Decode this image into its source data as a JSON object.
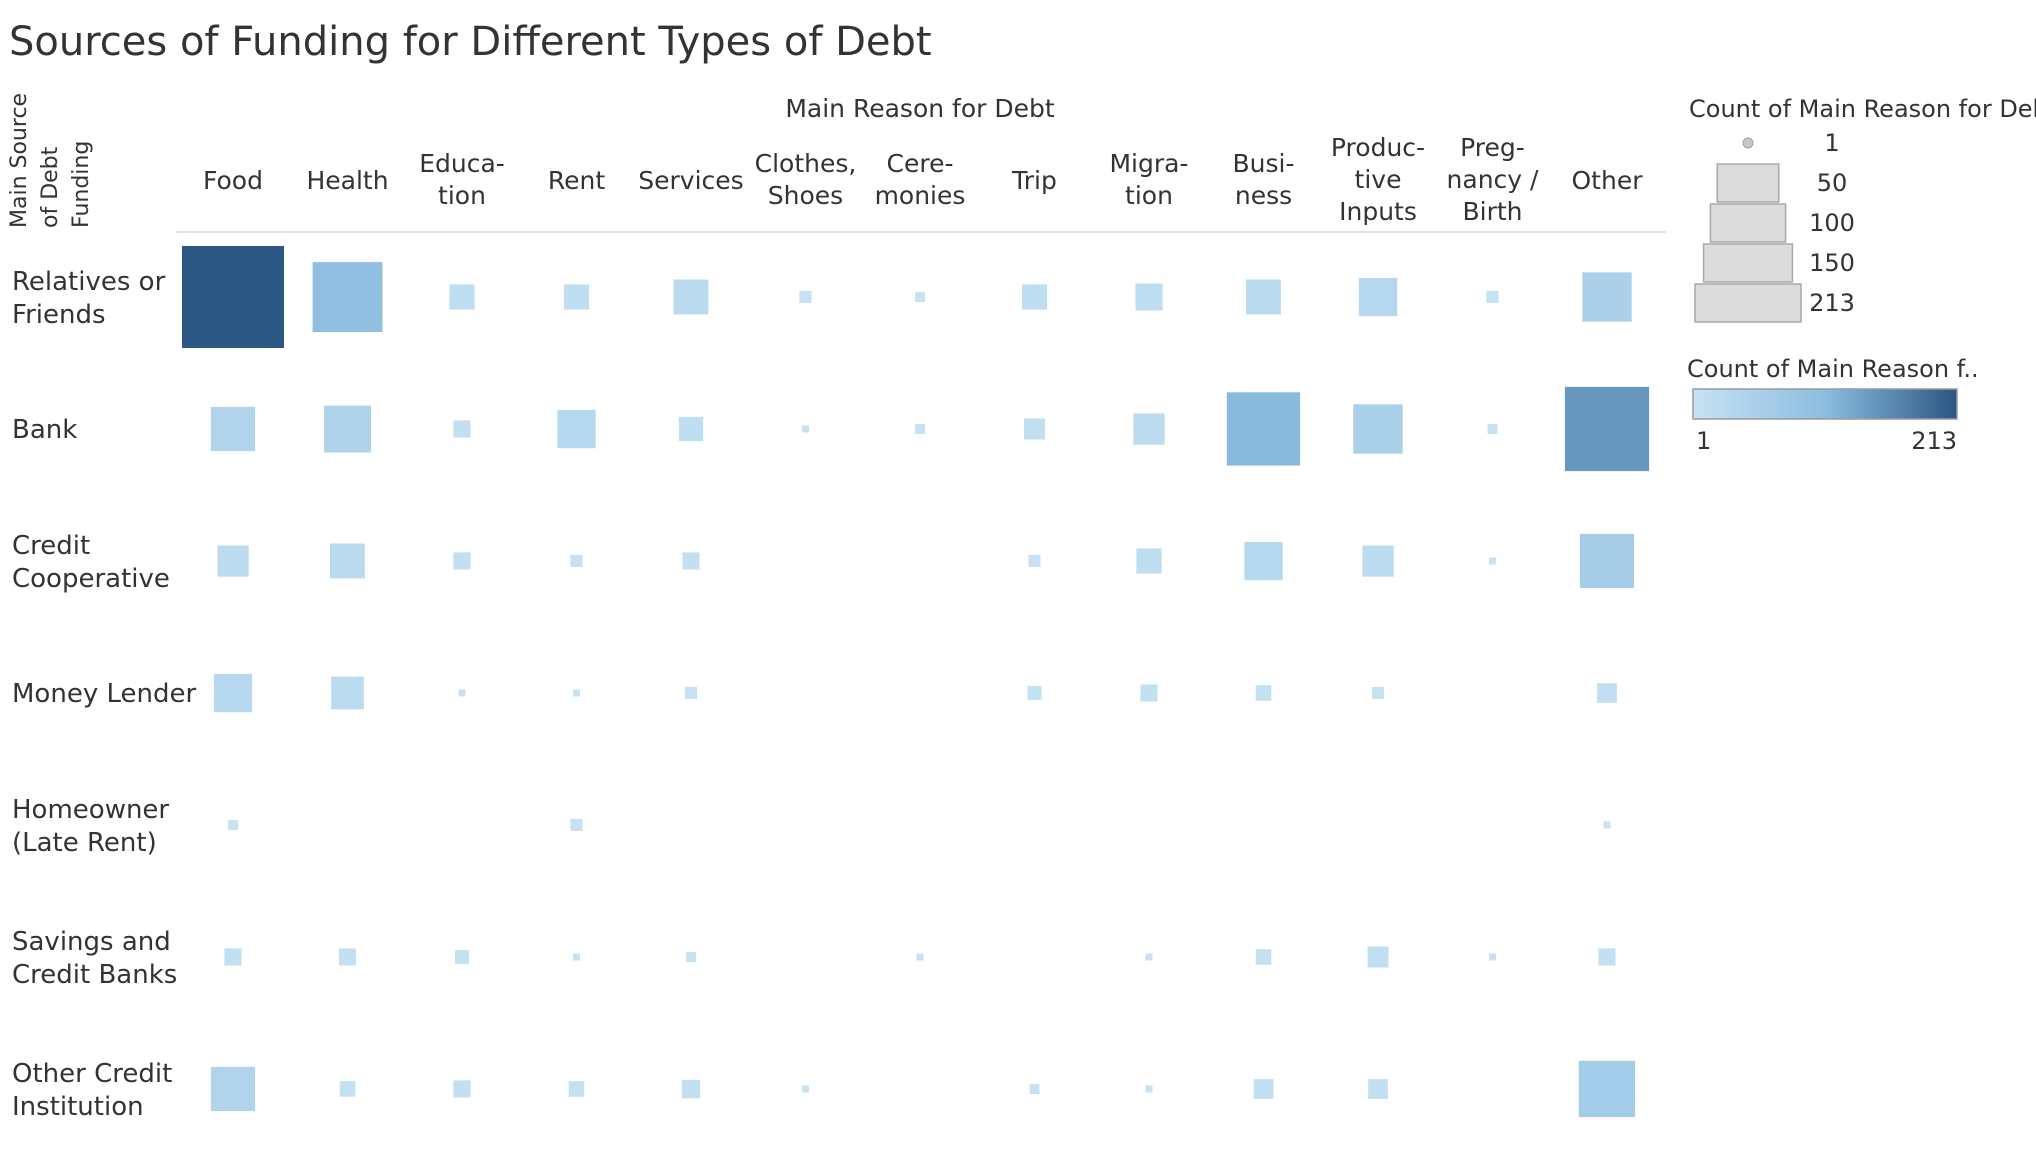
{
  "chart_data": {
    "type": "heatmap",
    "title": "Sources of Funding for Different Types of Debt",
    "column_title": "Main Reason for Debt",
    "row_title": [
      "Main Source",
      "of Debt",
      "Funding"
    ],
    "columns": [
      [
        "Food"
      ],
      [
        "Health"
      ],
      [
        "Educa-",
        "tion"
      ],
      [
        "Rent"
      ],
      [
        "Services"
      ],
      [
        "Clothes,",
        "Shoes"
      ],
      [
        "Cere-",
        "monies"
      ],
      [
        "Trip"
      ],
      [
        "Migra-",
        "tion"
      ],
      [
        "Busi-",
        "ness"
      ],
      [
        "Produc-",
        "tive",
        "Inputs"
      ],
      [
        "Preg-",
        "nancy /",
        "Birth"
      ],
      [
        "Other"
      ]
    ],
    "rows": [
      [
        "Relatives or",
        "Friends"
      ],
      [
        "Bank"
      ],
      [
        "Credit",
        "Cooperative"
      ],
      [
        "Money Lender"
      ],
      [
        "Homeowner",
        "(Late Rent)"
      ],
      [
        "Savings and",
        "Credit Banks"
      ],
      [
        "Other Credit",
        "Institution"
      ]
    ],
    "values": [
      [
        213,
        100,
        13,
        13,
        25,
        3,
        2,
        13,
        15,
        25,
        30,
        3,
        50
      ],
      [
        40,
        45,
        6,
        30,
        12,
        1,
        2,
        9,
        20,
        110,
        50,
        2,
        145
      ],
      [
        20,
        25,
        6,
        3,
        6,
        null,
        null,
        3,
        13,
        30,
        20,
        1,
        60
      ],
      [
        30,
        22,
        1,
        1,
        3,
        null,
        null,
        4,
        6,
        5,
        3,
        null,
        8
      ],
      [
        2,
        null,
        null,
        3,
        null,
        null,
        null,
        null,
        null,
        null,
        null,
        null,
        1
      ],
      [
        6,
        6,
        4,
        1,
        2,
        null,
        1,
        null,
        1,
        5,
        9,
        1,
        6
      ],
      [
        40,
        5,
        6,
        5,
        7,
        1,
        null,
        2,
        1,
        8,
        8,
        null,
        65
      ]
    ],
    "size_legend": {
      "title": "Count of Main Reason for Debt",
      "values": [
        1,
        50,
        100,
        150,
        213
      ]
    },
    "color_legend": {
      "title": "Count of Main Reason f..",
      "min": 1,
      "max": 213,
      "min_label": "1",
      "max_label": "213",
      "color_low": "#c6e2f3",
      "color_mid": "#8cbde0",
      "color_high": "#2a5783"
    }
  }
}
